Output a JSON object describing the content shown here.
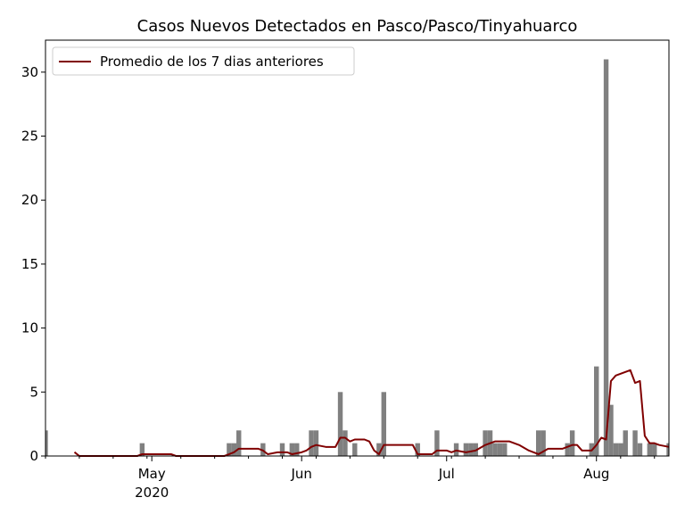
{
  "chart_data": {
    "type": "bar",
    "title": "Casos Nuevos Detectados en Pasco/Pasco/Tinyahuarco",
    "xlabel": "",
    "ylabel": "",
    "x_start": "2020-04-09",
    "x_end": "2020-08-16",
    "ylim": [
      0,
      32.5
    ],
    "yticks": [
      0,
      5,
      10,
      15,
      20,
      25,
      30
    ],
    "xticks": [
      {
        "date": "2020-05-01",
        "label": "May",
        "sublabel": "2020"
      },
      {
        "date": "2020-06-01",
        "label": "Jun",
        "sublabel": ""
      },
      {
        "date": "2020-07-01",
        "label": "Jul",
        "sublabel": ""
      },
      {
        "date": "2020-08-01",
        "label": "Aug",
        "sublabel": ""
      }
    ],
    "grid": false,
    "legend_position": "top-left",
    "bar_color": "#808080",
    "line_color": "#800000",
    "series": [
      {
        "type": "bar",
        "points": [
          [
            "2020-04-09",
            2
          ],
          [
            "2020-04-29",
            1
          ],
          [
            "2020-05-17",
            1
          ],
          [
            "2020-05-18",
            1
          ],
          [
            "2020-05-19",
            2
          ],
          [
            "2020-05-24",
            1
          ],
          [
            "2020-05-28",
            1
          ],
          [
            "2020-05-30",
            1
          ],
          [
            "2020-05-31",
            1
          ],
          [
            "2020-06-03",
            2
          ],
          [
            "2020-06-04",
            2
          ],
          [
            "2020-06-09",
            5
          ],
          [
            "2020-06-10",
            2
          ],
          [
            "2020-06-12",
            1
          ],
          [
            "2020-06-17",
            1
          ],
          [
            "2020-06-18",
            5
          ],
          [
            "2020-06-25",
            1
          ],
          [
            "2020-06-29",
            2
          ],
          [
            "2020-07-03",
            1
          ],
          [
            "2020-07-05",
            1
          ],
          [
            "2020-07-06",
            1
          ],
          [
            "2020-07-07",
            1
          ],
          [
            "2020-07-09",
            2
          ],
          [
            "2020-07-10",
            2
          ],
          [
            "2020-07-11",
            1
          ],
          [
            "2020-07-12",
            1
          ],
          [
            "2020-07-13",
            1
          ],
          [
            "2020-07-20",
            2
          ],
          [
            "2020-07-21",
            2
          ],
          [
            "2020-07-26",
            1
          ],
          [
            "2020-07-27",
            2
          ],
          [
            "2020-07-31",
            1
          ],
          [
            "2020-08-01",
            7
          ],
          [
            "2020-08-03",
            31
          ],
          [
            "2020-08-04",
            4
          ],
          [
            "2020-08-05",
            1
          ],
          [
            "2020-08-06",
            1
          ],
          [
            "2020-08-07",
            2
          ],
          [
            "2020-08-09",
            2
          ],
          [
            "2020-08-10",
            1
          ],
          [
            "2020-08-12",
            1
          ],
          [
            "2020-08-13",
            1
          ],
          [
            "2020-08-16",
            1
          ]
        ]
      },
      {
        "type": "line",
        "name": "Promedio de los 7 dias anteriores",
        "points": [
          [
            "2020-04-15",
            0.3
          ],
          [
            "2020-04-16",
            0
          ],
          [
            "2020-04-28",
            0
          ],
          [
            "2020-04-29",
            0.14
          ],
          [
            "2020-05-05",
            0.14
          ],
          [
            "2020-05-06",
            0
          ],
          [
            "2020-05-16",
            0
          ],
          [
            "2020-05-17",
            0.14
          ],
          [
            "2020-05-18",
            0.29
          ],
          [
            "2020-05-19",
            0.57
          ],
          [
            "2020-05-23",
            0.57
          ],
          [
            "2020-05-24",
            0.43
          ],
          [
            "2020-05-25",
            0.14
          ],
          [
            "2020-05-27",
            0.29
          ],
          [
            "2020-05-29",
            0.29
          ],
          [
            "2020-05-30",
            0.14
          ],
          [
            "2020-06-01",
            0.29
          ],
          [
            "2020-06-02",
            0.43
          ],
          [
            "2020-06-03",
            0.71
          ],
          [
            "2020-06-04",
            0.86
          ],
          [
            "2020-06-06",
            0.71
          ],
          [
            "2020-06-08",
            0.71
          ],
          [
            "2020-06-09",
            1.43
          ],
          [
            "2020-06-10",
            1.43
          ],
          [
            "2020-06-11",
            1.14
          ],
          [
            "2020-06-12",
            1.29
          ],
          [
            "2020-06-14",
            1.29
          ],
          [
            "2020-06-15",
            1.14
          ],
          [
            "2020-06-16",
            0.43
          ],
          [
            "2020-06-17",
            0.14
          ],
          [
            "2020-06-18",
            0.86
          ],
          [
            "2020-06-24",
            0.86
          ],
          [
            "2020-06-25",
            0.14
          ],
          [
            "2020-06-28",
            0.14
          ],
          [
            "2020-06-29",
            0.43
          ],
          [
            "2020-07-01",
            0.43
          ],
          [
            "2020-07-02",
            0.29
          ],
          [
            "2020-07-03",
            0.43
          ],
          [
            "2020-07-05",
            0.29
          ],
          [
            "2020-07-07",
            0.43
          ],
          [
            "2020-07-09",
            0.86
          ],
          [
            "2020-07-11",
            1.14
          ],
          [
            "2020-07-14",
            1.14
          ],
          [
            "2020-07-16",
            0.86
          ],
          [
            "2020-07-18",
            0.43
          ],
          [
            "2020-07-20",
            0.14
          ],
          [
            "2020-07-22",
            0.57
          ],
          [
            "2020-07-25",
            0.57
          ],
          [
            "2020-07-27",
            0.86
          ],
          [
            "2020-07-28",
            0.86
          ],
          [
            "2020-07-29",
            0.43
          ],
          [
            "2020-07-31",
            0.43
          ],
          [
            "2020-08-01",
            0.86
          ],
          [
            "2020-08-02",
            1.43
          ],
          [
            "2020-08-03",
            1.29
          ],
          [
            "2020-08-04",
            5.86
          ],
          [
            "2020-08-05",
            6.29
          ],
          [
            "2020-08-06",
            6.43
          ],
          [
            "2020-08-07",
            6.57
          ],
          [
            "2020-08-08",
            6.71
          ],
          [
            "2020-08-09",
            5.71
          ],
          [
            "2020-08-10",
            5.86
          ],
          [
            "2020-08-11",
            1.57
          ],
          [
            "2020-08-12",
            1.0
          ],
          [
            "2020-08-13",
            1.0
          ],
          [
            "2020-08-14",
            0.86
          ],
          [
            "2020-08-16",
            0.71
          ]
        ]
      }
    ]
  }
}
